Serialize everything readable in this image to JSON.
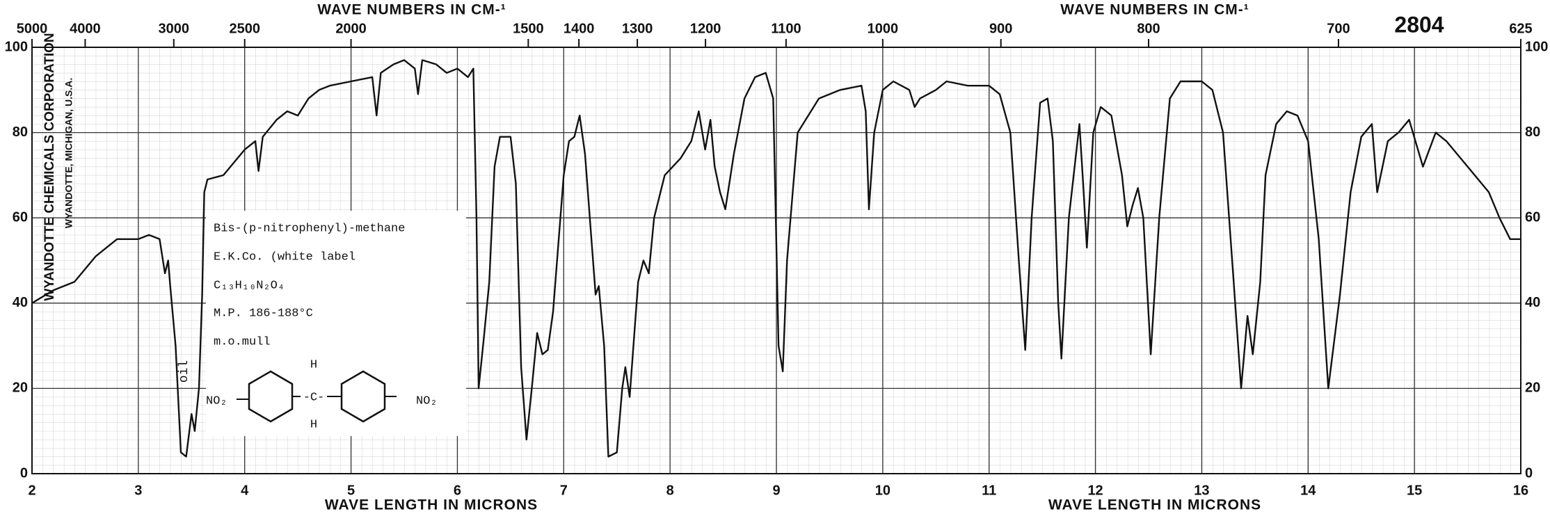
{
  "chart_data": {
    "type": "line",
    "catalog_number": "2804",
    "company": "WYANDOTTE CHEMICALS CORPORATION",
    "company_location": "WYANDOTTE, MICHIGAN, U.S.A.",
    "x_label": "WAVE LENGTH IN MICRONS",
    "x2_label": "WAVE NUMBERS IN CM-¹",
    "xlim": [
      2,
      16
    ],
    "xticks": [
      2,
      3,
      4,
      5,
      6,
      7,
      8,
      9,
      10,
      11,
      12,
      13,
      14,
      15,
      16
    ],
    "x2ticks": [
      5000,
      4000,
      3000,
      2500,
      2000,
      1500,
      1400,
      1300,
      1200,
      1100,
      1000,
      900,
      800,
      700,
      625
    ],
    "ylim": [
      0,
      100
    ],
    "yticks": [
      0,
      20,
      40,
      60,
      80,
      100
    ],
    "grid": true,
    "color": "#111111",
    "annotation": "oil",
    "sample": {
      "name": "Bis-(p-nitrophenyl)-methane",
      "source": "E.K.Co. (white label",
      "formula": "C₁₃H₁₀N₂O₄",
      "melting_point": "M.P. 186-188°C",
      "method": "m.o.mull",
      "structure_labels": [
        "NO₂",
        "H",
        "-C-",
        "H",
        "NO₂"
      ]
    },
    "x": [
      2.0,
      2.2,
      2.4,
      2.6,
      2.7,
      2.8,
      3.0,
      3.1,
      3.2,
      3.25,
      3.28,
      3.3,
      3.35,
      3.4,
      3.45,
      3.5,
      3.53,
      3.57,
      3.6,
      3.62,
      3.65,
      3.8,
      3.9,
      4.0,
      4.1,
      4.13,
      4.17,
      4.3,
      4.4,
      4.5,
      4.6,
      4.7,
      4.8,
      5.0,
      5.2,
      5.24,
      5.28,
      5.4,
      5.5,
      5.6,
      5.63,
      5.67,
      5.8,
      5.9,
      6.0,
      6.1,
      6.15,
      6.18,
      6.2,
      6.25,
      6.3,
      6.35,
      6.4,
      6.5,
      6.55,
      6.6,
      6.65,
      6.7,
      6.75,
      6.8,
      6.85,
      6.9,
      7.0,
      7.05,
      7.1,
      7.15,
      7.2,
      7.3,
      7.33,
      7.38,
      7.42,
      7.5,
      7.55,
      7.58,
      7.62,
      7.7,
      7.75,
      7.8,
      7.85,
      7.95,
      8.1,
      8.2,
      8.27,
      8.33,
      8.38,
      8.42,
      8.47,
      8.52,
      8.6,
      8.7,
      8.8,
      8.9,
      8.97,
      9.02,
      9.06,
      9.1,
      9.2,
      9.4,
      9.6,
      9.8,
      9.84,
      9.87,
      9.92,
      10.0,
      10.1,
      10.25,
      10.3,
      10.35,
      10.5,
      10.6,
      10.8,
      11.0,
      11.1,
      11.2,
      11.28,
      11.34,
      11.4,
      11.48,
      11.55,
      11.6,
      11.65,
      11.68,
      11.75,
      11.85,
      11.88,
      11.92,
      11.98,
      12.05,
      12.15,
      12.25,
      12.3,
      12.35,
      12.4,
      12.45,
      12.52,
      12.6,
      12.7,
      12.8,
      13.0,
      13.1,
      13.2,
      13.3,
      13.37,
      13.43,
      13.48,
      13.55,
      13.6,
      13.7,
      13.8,
      13.9,
      14.0,
      14.1,
      14.19,
      14.3,
      14.4,
      14.5,
      14.6,
      14.65,
      14.75,
      14.85,
      14.95,
      15.08,
      15.2,
      15.3,
      15.5,
      15.7,
      15.8,
      15.9,
      16.0
    ],
    "values": [
      40,
      43,
      45,
      51,
      53,
      55,
      55,
      56,
      55,
      47,
      50,
      44,
      30,
      5,
      4,
      14,
      10,
      20,
      42,
      66,
      69,
      70,
      73,
      76,
      78,
      71,
      79,
      83,
      85,
      84,
      88,
      90,
      91,
      92,
      93,
      84,
      94,
      96,
      97,
      95,
      89,
      97,
      96,
      94,
      95,
      93,
      95,
      60,
      20,
      32,
      45,
      72,
      79,
      79,
      68,
      25,
      8,
      20,
      33,
      28,
      29,
      38,
      70,
      78,
      79,
      84,
      75,
      42,
      44,
      30,
      4,
      5,
      20,
      25,
      18,
      45,
      50,
      47,
      60,
      70,
      74,
      78,
      85,
      76,
      83,
      72,
      66,
      62,
      75,
      88,
      93,
      94,
      88,
      30,
      24,
      50,
      80,
      88,
      90,
      91,
      85,
      62,
      80,
      90,
      92,
      90,
      86,
      88,
      90,
      92,
      91,
      91,
      89,
      80,
      50,
      29,
      60,
      87,
      88,
      78,
      40,
      27,
      60,
      82,
      70,
      53,
      80,
      86,
      84,
      70,
      58,
      63,
      67,
      60,
      28,
      60,
      88,
      92,
      92,
      90,
      80,
      45,
      20,
      37,
      28,
      45,
      70,
      82,
      85,
      84,
      78,
      55,
      20,
      42,
      66,
      79,
      82,
      66,
      78,
      80,
      83,
      72,
      80,
      78,
      72,
      66,
      60,
      55,
      55
    ]
  }
}
